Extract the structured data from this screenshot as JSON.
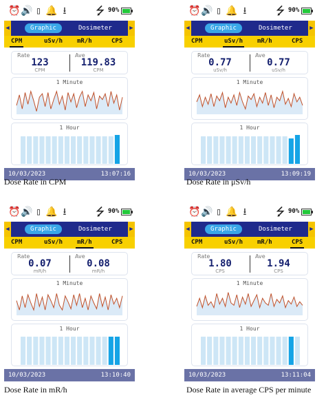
{
  "status_icons": [
    "alarm-clock-icon",
    "volume-icon",
    "vibrate-icon",
    "alarm-bell-icon",
    "download-icon"
  ],
  "status": {
    "battery_text": "90%"
  },
  "panels": [
    {
      "mode_selected": "Graphic",
      "mode_other": "Dosimeter",
      "units": [
        "CPM",
        "uSv/h",
        "mR/h",
        "CPS"
      ],
      "active_unit": 0,
      "rate_label": "Rate",
      "ave_label": "Ave",
      "rate_value": "123",
      "ave_value": "119.83",
      "unit_label": "CPM",
      "minute_title": "1 Minute",
      "hour_title": "1 Hour",
      "minute_series": [
        0.35,
        0.8,
        0.2,
        0.9,
        0.4,
        0.95,
        0.55,
        0.1,
        0.7,
        0.85,
        0.3,
        0.9,
        0.2,
        0.6,
        0.95,
        0.4,
        0.75,
        0.15,
        0.9,
        0.5,
        0.85,
        0.25,
        0.7,
        0.95,
        0.3,
        0.8,
        0.55,
        0.9,
        0.2,
        0.75,
        0.6,
        0.85,
        0.3,
        0.95,
        0.45,
        0.8,
        0.15,
        0.7
      ],
      "hour_bars": [
        0.78,
        0.78,
        0.78,
        0.78,
        0.78,
        0.78,
        0.78,
        0.78,
        0.78,
        0.78,
        0.78,
        0.78,
        0.78,
        0.78,
        0.78,
        0.82
      ],
      "hour_highlight": [
        15
      ],
      "date": "10/03/2023",
      "time": "13:07:16",
      "caption": "Dose Rate in CPM"
    },
    {
      "mode_selected": "Graphic",
      "mode_other": "Dosimeter",
      "units": [
        "CPM",
        "uSv/h",
        "mR/h",
        "CPS"
      ],
      "active_unit": 1,
      "rate_label": "Rate",
      "ave_label": "Ave",
      "rate_value": "0.77",
      "ave_value": "0.77",
      "unit_label": "uSv/h",
      "minute_title": "1 Minute",
      "hour_title": "1 Hour",
      "minute_series": [
        0.5,
        0.8,
        0.3,
        0.7,
        0.4,
        0.85,
        0.3,
        0.75,
        0.55,
        0.9,
        0.25,
        0.7,
        0.45,
        0.8,
        0.35,
        0.9,
        0.5,
        0.2,
        0.75,
        0.6,
        0.85,
        0.3,
        0.7,
        0.45,
        0.9,
        0.35,
        0.8,
        0.25,
        0.7,
        0.55,
        0.95,
        0.4,
        0.65,
        0.3,
        0.85,
        0.5,
        0.7,
        0.35
      ],
      "hour_bars": [
        0.78,
        0.78,
        0.78,
        0.78,
        0.78,
        0.78,
        0.78,
        0.78,
        0.78,
        0.78,
        0.78,
        0.78,
        0.78,
        0.78,
        0.72,
        0.82
      ],
      "hour_highlight": [
        14,
        15
      ],
      "date": "10/03/2023",
      "time": "13:09:19",
      "caption": "Dose Rate in μSv/h"
    },
    {
      "mode_selected": "Graphic",
      "mode_other": "Dosimeter",
      "units": [
        "CPM",
        "uSv/h",
        "mR/h",
        "CPS"
      ],
      "active_unit": 2,
      "rate_label": "Rate",
      "ave_label": "Ave",
      "rate_value": "0.07",
      "ave_value": "0.08",
      "unit_label": "mR/h",
      "minute_title": "1 Minute",
      "hour_title": "1 Hour",
      "minute_series": [
        0.6,
        0.2,
        0.8,
        0.3,
        0.85,
        0.5,
        0.2,
        0.9,
        0.35,
        0.75,
        0.2,
        0.85,
        0.6,
        0.3,
        0.9,
        0.4,
        0.2,
        0.8,
        0.55,
        0.25,
        0.85,
        0.4,
        0.9,
        0.3,
        0.7,
        0.2,
        0.8,
        0.5,
        0.25,
        0.9,
        0.35,
        0.75,
        0.2,
        0.85,
        0.45,
        0.7,
        0.3,
        0.8
      ],
      "hour_bars": [
        0.8,
        0.8,
        0.8,
        0.8,
        0.8,
        0.8,
        0.8,
        0.8,
        0.8,
        0.8,
        0.8,
        0.8,
        0.8,
        0.8,
        0.8,
        0.8
      ],
      "hour_highlight": [
        14,
        15
      ],
      "date": "10/03/2023",
      "time": "13:10:40",
      "caption": "Dose Rate in mR/h"
    },
    {
      "mode_selected": "Graphic",
      "mode_other": "Dosimeter",
      "units": [
        "CPM",
        "uSv/h",
        "mR/h",
        "CPS"
      ],
      "active_unit": 3,
      "rate_label": "Rate",
      "ave_label": "Ave",
      "rate_value": "1.80",
      "ave_value": "1.94",
      "unit_label": "CPS",
      "minute_title": "1 Minute",
      "hour_title": "1 Hour",
      "minute_series": [
        0.35,
        0.7,
        0.3,
        0.8,
        0.4,
        0.55,
        0.3,
        0.9,
        0.45,
        0.7,
        0.35,
        0.95,
        0.5,
        0.4,
        0.85,
        0.3,
        0.75,
        0.45,
        0.9,
        0.35,
        0.6,
        0.85,
        0.3,
        0.7,
        0.5,
        0.4,
        0.9,
        0.35,
        0.65,
        0.5,
        0.8,
        0.3,
        0.6,
        0.45,
        0.75,
        0.35,
        0.55,
        0.4
      ],
      "hour_bars": [
        0.8,
        0.8,
        0.8,
        0.8,
        0.8,
        0.8,
        0.8,
        0.8,
        0.8,
        0.8,
        0.8,
        0.8,
        0.8,
        0.8,
        0.8,
        0.8
      ],
      "hour_highlight": [
        14
      ],
      "date": "10/03/2023",
      "time": "13:11:04",
      "caption": "Dose Rate in average CPS per minute"
    }
  ]
}
